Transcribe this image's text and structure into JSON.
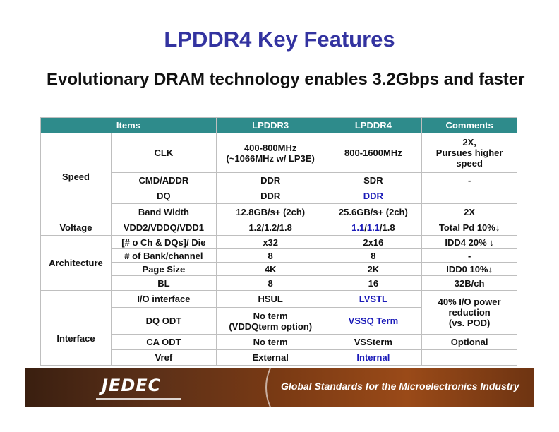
{
  "title": "LPDDR4 Key Features",
  "subtitle": "Evolutionary DRAM technology enables 3.2Gbps and faster",
  "table": {
    "headers": [
      "Items",
      "LPDDR3",
      "LPDDR4",
      "Comments"
    ],
    "rows": {
      "speed_group": "Speed",
      "clk": {
        "item": "CLK",
        "lp3_a": "400-800MHz",
        "lp3_b": "(~1066MHz w/ LP3E)",
        "lp4": "800-1600MHz",
        "c1": "2X,",
        "c2": "Pursues higher",
        "c3": "speed"
      },
      "cmd": {
        "item": "CMD/ADDR",
        "lp3": "DDR",
        "lp4": "SDR",
        "comment": "-"
      },
      "dq": {
        "item": "DQ",
        "lp3": "DDR",
        "lp4": "DDR",
        "comment": ""
      },
      "bw": {
        "item": "Band Width",
        "lp3": "12.8GB/s+ (2ch)",
        "lp4": "25.6GB/s+ (2ch)",
        "comment": "2X"
      },
      "voltage_group": "Voltage",
      "vdd": {
        "item": "VDD2/VDDQ/VDD1",
        "lp3": "1.2/1.2/1.8",
        "lp4_a": "1.1",
        "lp4_s1": "/",
        "lp4_b": "1.1",
        "lp4_c": "/1.8",
        "comment": "Total Pd 10%↓"
      },
      "arch_group": "Architecture",
      "die": {
        "item": "[# o Ch  & DQs]/ Die",
        "lp3": "x32",
        "lp4": "2x16",
        "comment": "IDD4 20% ↓"
      },
      "bank": {
        "item": "# of Bank/channel",
        "lp3": "8",
        "lp4": "8",
        "comment": "-"
      },
      "page": {
        "item": "Page Size",
        "lp3": "4K",
        "lp4": "2K",
        "comment": "IDD0 10%↓"
      },
      "bl": {
        "item": "BL",
        "lp3": "8",
        "lp4": "16",
        "comment": "32B/ch"
      },
      "iface_group": "Interface",
      "io": {
        "item": "I/O interface",
        "lp3": "HSUL",
        "lp4": "LVSTL",
        "c1": "40% I/O power",
        "c2": "reduction",
        "c3": "(vs. POD)"
      },
      "dqodt": {
        "item": "DQ ODT",
        "lp3_a": "No term",
        "lp3_b": "(VDDQterm option)",
        "lp4": "VSSQ Term"
      },
      "caodt": {
        "item": "CA ODT",
        "lp3": "No term",
        "lp4": "VSSterm",
        "comment": "Optional"
      },
      "vref": {
        "item": "Vref",
        "lp3": "External",
        "lp4": "Internal",
        "comment": ""
      }
    }
  },
  "footer": {
    "logo": "JEDEC",
    "tagline": "Global Standards for the Microelectronics Industry"
  },
  "colors": {
    "title": "#3333a0",
    "header_bg": "#2e8b8b",
    "highlight": "#1a1ab8"
  }
}
